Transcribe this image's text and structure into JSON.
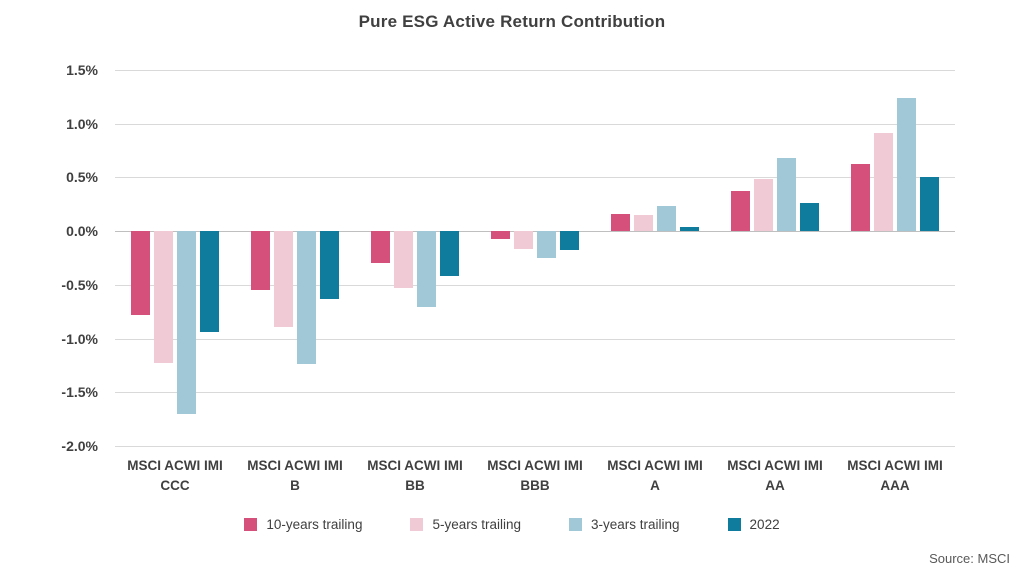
{
  "title": "Pure ESG Active Return Contribution",
  "source": "Source: MSCI",
  "colors": {
    "background": "#ffffff",
    "text": "#404040",
    "source_text": "#595959",
    "gridline": "#d9d9d9",
    "zero_line": "#bfbfbf",
    "series_10yr": "#d5517b",
    "series_5yr": "#f0cbd6",
    "series_3yr": "#a0c8d6",
    "series_2022": "#0f7c9e"
  },
  "chart_data": {
    "type": "bar",
    "title": "Pure ESG Active Return Contribution",
    "xlabel": "",
    "ylabel": "",
    "ylim": [
      -2.0,
      1.5
    ],
    "grid": true,
    "legend_position": "bottom",
    "value_unit": "%",
    "yticks": [
      {
        "value": 1.5,
        "label": "1.5%"
      },
      {
        "value": 1.0,
        "label": "1.0%"
      },
      {
        "value": 0.5,
        "label": "0.5%"
      },
      {
        "value": 0.0,
        "label": "0.0%"
      },
      {
        "value": -0.5,
        "label": "-0.5%"
      },
      {
        "value": -1.0,
        "label": "-1.0%"
      },
      {
        "value": -1.5,
        "label": "-1.5%"
      },
      {
        "value": -2.0,
        "label": "-2.0%"
      }
    ],
    "categories": [
      {
        "line1": "MSCI ACWI IMI",
        "line2": "CCC"
      },
      {
        "line1": "MSCI ACWI IMI",
        "line2": "B"
      },
      {
        "line1": "MSCI ACWI IMI",
        "line2": "BB"
      },
      {
        "line1": "MSCI ACWI IMI",
        "line2": "BBB"
      },
      {
        "line1": "MSCI ACWI IMI",
        "line2": "A"
      },
      {
        "line1": "MSCI ACWI IMI",
        "line2": "AA"
      },
      {
        "line1": "MSCI ACWI IMI",
        "line2": "AAA"
      }
    ],
    "series": [
      {
        "name": "10-years trailing",
        "color": "#d5517b",
        "values": [
          -0.78,
          -0.55,
          -0.3,
          -0.07,
          0.16,
          0.37,
          0.63
        ]
      },
      {
        "name": "5-years trailing",
        "color": "#f0cbd6",
        "values": [
          -1.23,
          -0.89,
          -0.53,
          -0.17,
          0.15,
          0.49,
          0.91
        ]
      },
      {
        "name": "3-years trailing",
        "color": "#a0c8d6",
        "values": [
          -1.7,
          -1.24,
          -0.71,
          -0.25,
          0.23,
          0.68,
          1.24
        ]
      },
      {
        "name": "2022",
        "color": "#0f7c9e",
        "values": [
          -0.94,
          -0.63,
          -0.42,
          -0.18,
          0.04,
          0.26,
          0.5
        ]
      }
    ]
  }
}
